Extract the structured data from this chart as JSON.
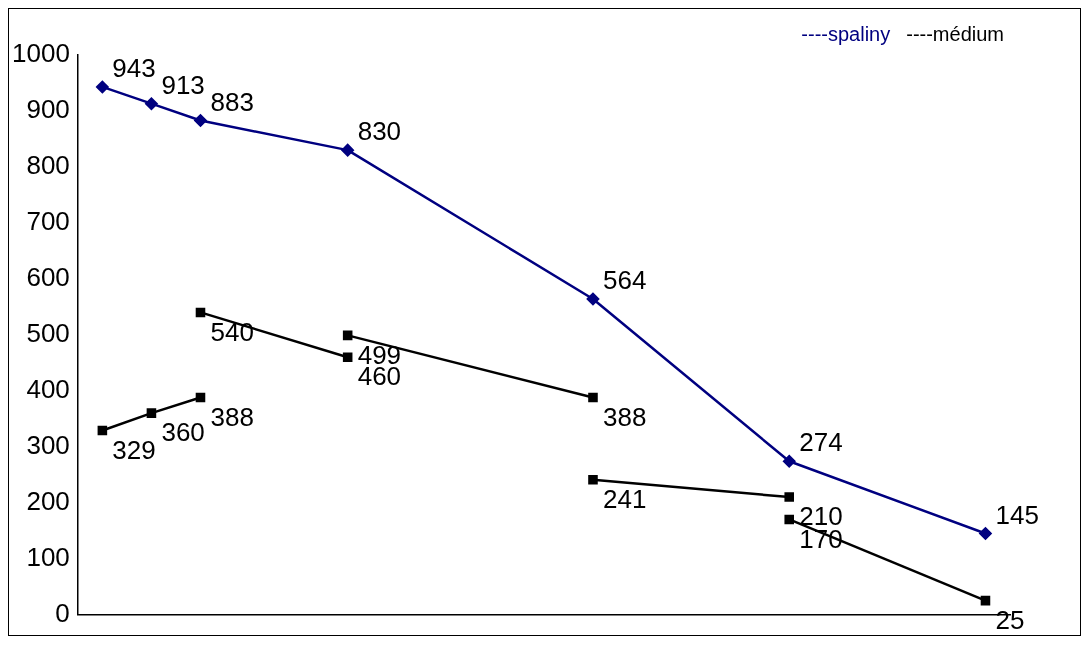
{
  "chart_data": {
    "type": "line",
    "categories": [
      null,
      null,
      null,
      null,
      null,
      null,
      null,
      null,
      null,
      null,
      null,
      null,
      null,
      null,
      null,
      null,
      null,
      null,
      null
    ],
    "series": [
      {
        "name": "----spaliny",
        "color": "#000080",
        "marker": "diamond",
        "values": [
          943,
          913,
          883,
          null,
          null,
          830,
          null,
          null,
          null,
          null,
          564,
          null,
          null,
          null,
          274,
          null,
          null,
          null,
          145
        ]
      },
      {
        "name": "----médium",
        "color": "#000000",
        "marker": "square",
        "values": [
          329,
          360,
          388,
          null,
          null,
          null,
          null,
          null,
          null,
          null,
          null,
          null,
          null,
          null,
          null,
          null,
          null,
          null,
          null
        ]
      },
      {
        "color": "#000000",
        "marker": "square",
        "values": [
          null,
          null,
          540,
          null,
          null,
          460,
          null,
          null,
          null,
          null,
          null,
          null,
          null,
          null,
          null,
          null,
          null,
          null,
          null
        ]
      },
      {
        "color": "#000000",
        "marker": "square",
        "values": [
          null,
          null,
          null,
          null,
          null,
          499,
          null,
          null,
          null,
          null,
          388,
          null,
          null,
          null,
          null,
          null,
          null,
          null,
          null
        ]
      },
      {
        "color": "#000000",
        "marker": "square",
        "values": [
          null,
          null,
          null,
          null,
          null,
          null,
          null,
          null,
          null,
          null,
          241,
          null,
          null,
          null,
          210,
          null,
          null,
          null,
          null
        ]
      },
      {
        "color": "#000000",
        "marker": "square",
        "values": [
          null,
          null,
          null,
          null,
          null,
          null,
          null,
          null,
          null,
          null,
          null,
          null,
          null,
          null,
          170,
          null,
          null,
          null,
          25
        ]
      }
    ],
    "ylim": [
      0,
      1000
    ],
    "yticks": [
      0,
      100,
      200,
      300,
      400,
      500,
      600,
      700,
      800,
      900,
      1000
    ],
    "grid": false,
    "legend": "top right",
    "data_labels": true,
    "line_style": "solid"
  }
}
